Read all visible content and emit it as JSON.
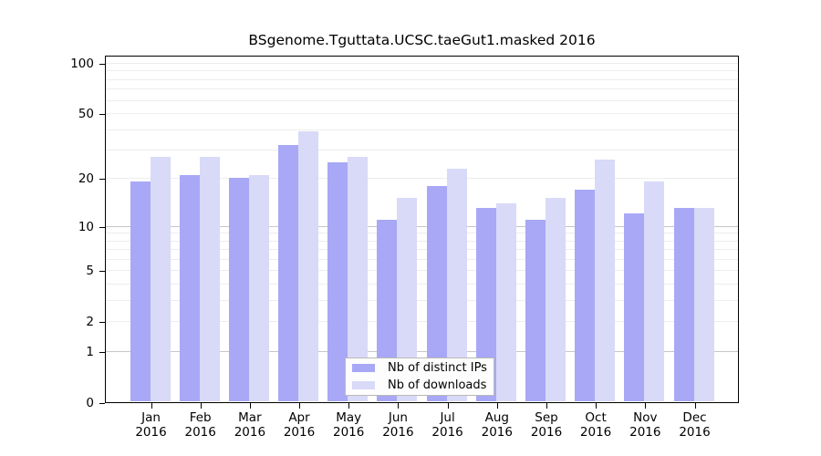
{
  "title": "BSgenome.Tguttata.UCSC.taeGut1.masked 2016",
  "legend": {
    "items": [
      {
        "label": "Nb of distinct IPs",
        "color": "#a8a8f6"
      },
      {
        "label": "Nb of downloads",
        "color": "#d9d9f8"
      }
    ]
  },
  "colors": {
    "distinct_ips_bar": "#a8a8f6",
    "downloads_bar": "#d9d9f8",
    "grid_minor": "#ededed",
    "grid_major": "#c6c6c6",
    "frame": "#000000"
  },
  "chart_data": {
    "type": "bar",
    "title": "BSgenome.Tguttata.UCSC.taeGut1.masked 2016",
    "xlabel": "",
    "ylabel": "",
    "x_tick_line1": [
      "Jan",
      "Feb",
      "Mar",
      "Apr",
      "May",
      "Jun",
      "Jul",
      "Aug",
      "Sep",
      "Oct",
      "Nov",
      "Dec"
    ],
    "x_tick_line2": "2016",
    "categories": [
      "Jan 2016",
      "Feb 2016",
      "Mar 2016",
      "Apr 2016",
      "May 2016",
      "Jun 2016",
      "Jul 2016",
      "Aug 2016",
      "Sep 2016",
      "Oct 2016",
      "Nov 2016",
      "Dec 2016"
    ],
    "series": [
      {
        "name": "Nb of distinct IPs",
        "color": "#a8a8f6",
        "values": [
          19,
          21,
          20,
          32,
          25,
          11,
          18,
          13,
          11,
          17,
          12,
          13
        ]
      },
      {
        "name": "Nb of downloads",
        "color": "#d9d9f8",
        "values": [
          27,
          27,
          21,
          39,
          27,
          15,
          23,
          14,
          15,
          26,
          19,
          13
        ]
      }
    ],
    "y_scale": "log1p",
    "ylim": [
      0,
      100
    ],
    "y_ticks": [
      0,
      1,
      2,
      5,
      10,
      20,
      50,
      100
    ],
    "gridlines": [
      1,
      2,
      3,
      4,
      5,
      6,
      7,
      8,
      9,
      10,
      20,
      30,
      40,
      50,
      60,
      70,
      80,
      90,
      100
    ],
    "major_gridlines": [
      1,
      10
    ],
    "grid": true,
    "legend_position": "inside-bottom-center"
  }
}
